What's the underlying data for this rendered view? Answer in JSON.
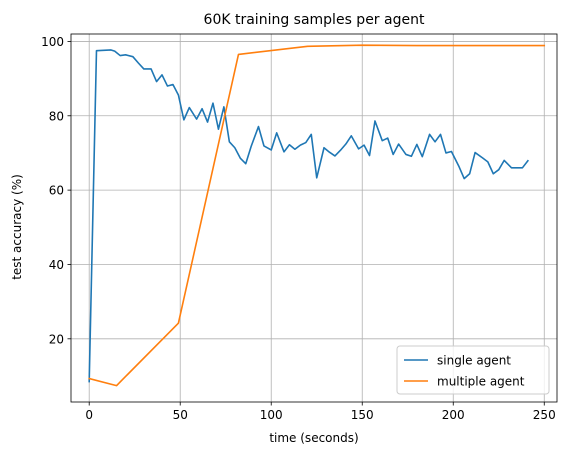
{
  "chart_data": {
    "type": "line",
    "title": "60K training samples per agent",
    "xlabel": "time (seconds)",
    "ylabel": "test accuracy (%)",
    "xlim": [
      -10,
      257
    ],
    "ylim": [
      3,
      102
    ],
    "xticks": [
      0,
      50,
      100,
      150,
      200,
      250
    ],
    "yticks": [
      20,
      40,
      60,
      80,
      100
    ],
    "grid": true,
    "legend_position": "lower-right",
    "series": [
      {
        "name": "single agent",
        "color": "#1f77b4",
        "x": [
          0,
          4,
          8,
          12,
          14,
          17,
          20,
          24,
          27,
          30,
          34,
          37,
          40,
          43,
          46,
          49,
          52,
          55,
          59,
          62,
          65,
          68,
          71,
          74,
          77,
          80,
          83,
          86,
          89,
          93,
          96,
          100,
          103,
          107,
          110,
          113,
          116,
          119,
          122,
          125,
          129,
          132,
          135,
          138,
          141,
          144,
          148,
          151,
          154,
          157,
          161,
          164,
          167,
          170,
          174,
          177,
          180,
          183,
          187,
          190,
          193,
          196,
          199,
          203,
          206,
          209,
          212,
          216,
          219,
          222,
          225,
          228,
          232,
          235,
          238,
          241
        ],
        "y": [
          8.5,
          97.5,
          97.6,
          97.7,
          97.4,
          96.2,
          96.4,
          95.9,
          94.2,
          92.6,
          92.6,
          89.2,
          91.0,
          88.0,
          88.4,
          85.6,
          78.9,
          82.2,
          79.1,
          81.9,
          78.3,
          83.4,
          76.4,
          82.4,
          73.0,
          71.4,
          68.6,
          67.1,
          71.8,
          77.1,
          71.9,
          70.8,
          75.4,
          70.3,
          72.2,
          71.0,
          72.1,
          72.8,
          75.0,
          63.3,
          71.4,
          70.2,
          69.2,
          70.7,
          72.4,
          74.6,
          71.1,
          72.1,
          69.3,
          78.6,
          73.3,
          74.0,
          69.6,
          72.4,
          69.6,
          69.1,
          72.3,
          69.0,
          75.0,
          73.0,
          75.0,
          70.0,
          70.4,
          66.5,
          63.1,
          64.4,
          70.1,
          68.7,
          67.6,
          64.4,
          65.5,
          68.0,
          66.0,
          66.0,
          66.0,
          67.9
        ]
      },
      {
        "name": "multiple agent",
        "color": "#ff7f0e",
        "x": [
          0,
          15,
          49,
          82,
          120,
          150,
          180,
          215,
          250
        ],
        "y": [
          9.3,
          7.4,
          24.2,
          96.5,
          98.7,
          99.0,
          98.9,
          98.9,
          98.9
        ]
      }
    ]
  }
}
